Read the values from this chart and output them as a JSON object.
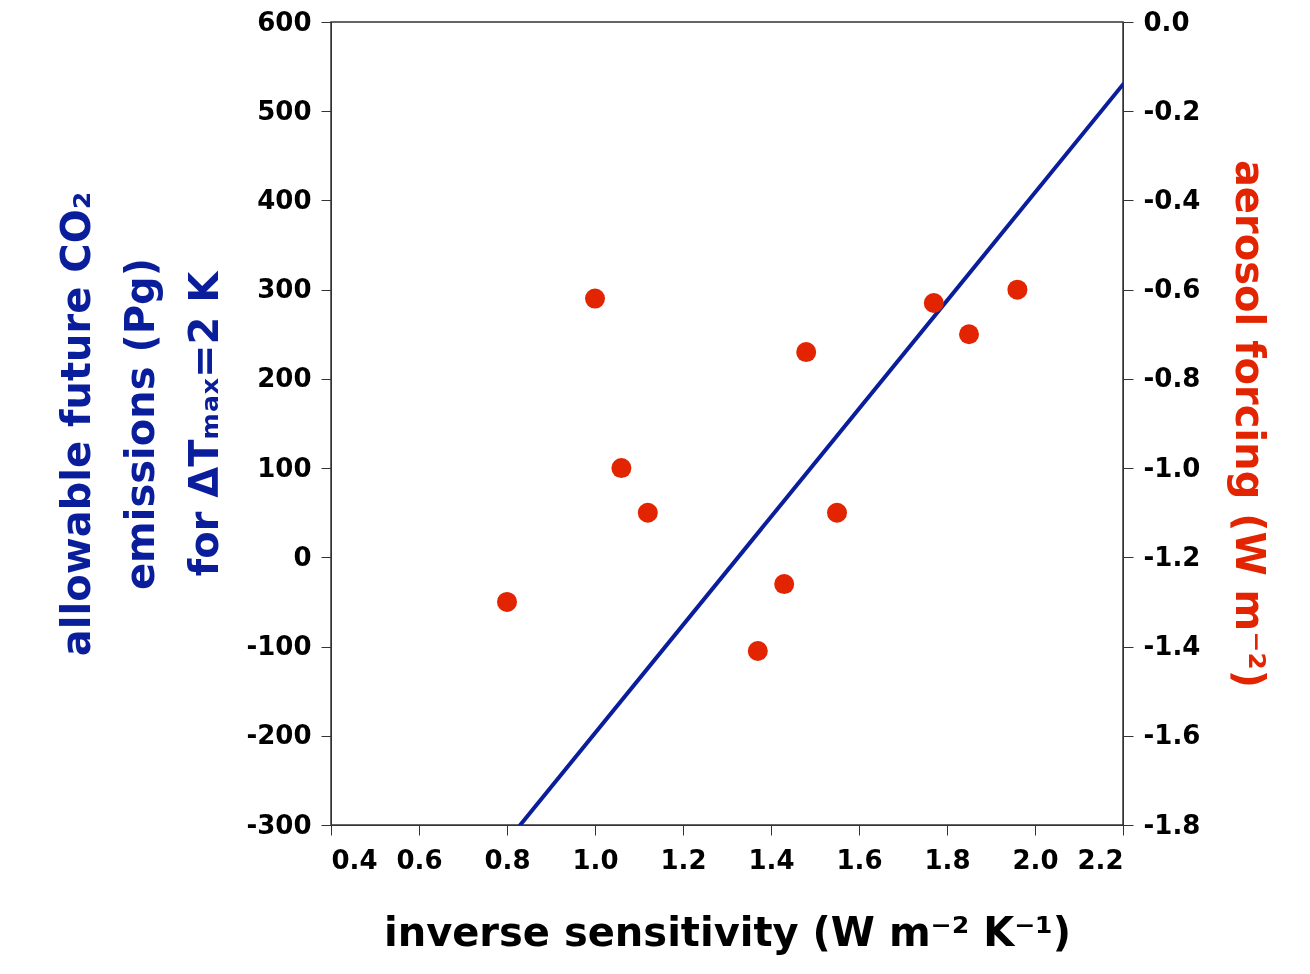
{
  "chart_data": {
    "type": "scatter",
    "xlabel": "inverse sensitivity (W m⁻² K⁻¹)",
    "ylabel": "allowable future CO₂\nemissions (Pg)\nfor ΔTₘₐₓ=2 K",
    "y2label": "aerosol forcing (W m⁻²)",
    "xlim": [
      0.4,
      2.2
    ],
    "xticks": [
      0.4,
      0.6,
      0.8,
      {
        "value": 1,
        "label": "1.0"
      },
      1.2,
      1.4,
      1.6,
      1.8,
      {
        "value": 2,
        "label": "2.0"
      },
      2.2
    ],
    "ylim": [
      -300,
      600
    ],
    "yticks": [
      -300,
      -200,
      -100,
      0,
      100,
      200,
      300,
      400,
      500,
      600
    ],
    "y2lim": [
      -1.8,
      0
    ],
    "y2ticks": [
      -1.8,
      -1.6,
      -1.4,
      -1.2,
      {
        "value": -1,
        "label": "-1.0"
      },
      -0.8,
      -0.6,
      -0.4,
      -0.2,
      {
        "value": 0,
        "label": "0.0"
      }
    ],
    "grid": false,
    "series": [
      {
        "type": "line",
        "color": "#0a1e9c",
        "x": [
          0.83,
          2.2
        ],
        "values": [
          -300,
          530
        ]
      },
      {
        "axis": "y2",
        "marker": "circle",
        "color": "#e32400",
        "x": [
          0.8,
          1.0,
          1.06,
          1.12,
          1.37,
          1.43,
          1.48,
          1.55,
          1.77,
          1.85,
          1.96
        ],
        "values": [
          -1.3,
          -0.62,
          -1.0,
          -1.1,
          -1.41,
          -1.26,
          -0.74,
          -1.1,
          -0.63,
          -0.7,
          -0.6
        ]
      }
    ]
  }
}
